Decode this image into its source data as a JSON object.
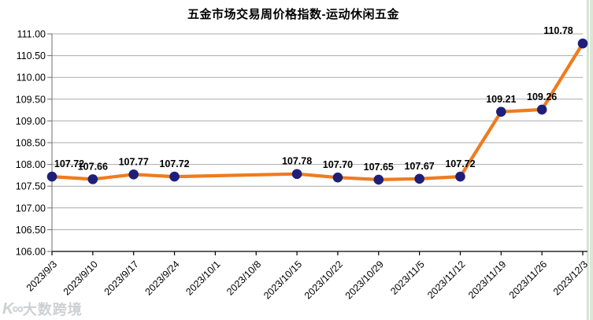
{
  "chart_data": {
    "type": "line",
    "title": "五金市场交易周价格指数-运动休闲五金",
    "categories": [
      "2023/9/3",
      "2023/9/10",
      "2023/9/17",
      "2023/9/24",
      "2023/10/1",
      "2023/10/8",
      "2023/10/15",
      "2023/10/22",
      "2023/10/29",
      "2023/11/5",
      "2023/11/12",
      "2023/11/19",
      "2023/11/26",
      "2023/12/3"
    ],
    "values": [
      107.72,
      107.66,
      107.77,
      107.72,
      null,
      null,
      107.78,
      107.7,
      107.65,
      107.67,
      107.72,
      109.21,
      109.26,
      110.78
    ],
    "xlabel": "",
    "ylabel": "",
    "ylim": [
      106,
      111
    ],
    "y_ticks": [
      "106.00",
      "106.50",
      "107.00",
      "107.50",
      "108.00",
      "108.50",
      "109.00",
      "109.50",
      "110.00",
      "110.50",
      "111.00"
    ],
    "grid": "horizontal",
    "legend": "none",
    "line_color": "#EE7C1F",
    "marker_color": "#1F1F7A",
    "gridline_color": "#ABABAB",
    "axis_color": "#000000",
    "left_axis_color": "#6E6E6E",
    "data_label_color": "#000000"
  },
  "watermark": {
    "logo": "K∞",
    "text": "大数跨境"
  }
}
